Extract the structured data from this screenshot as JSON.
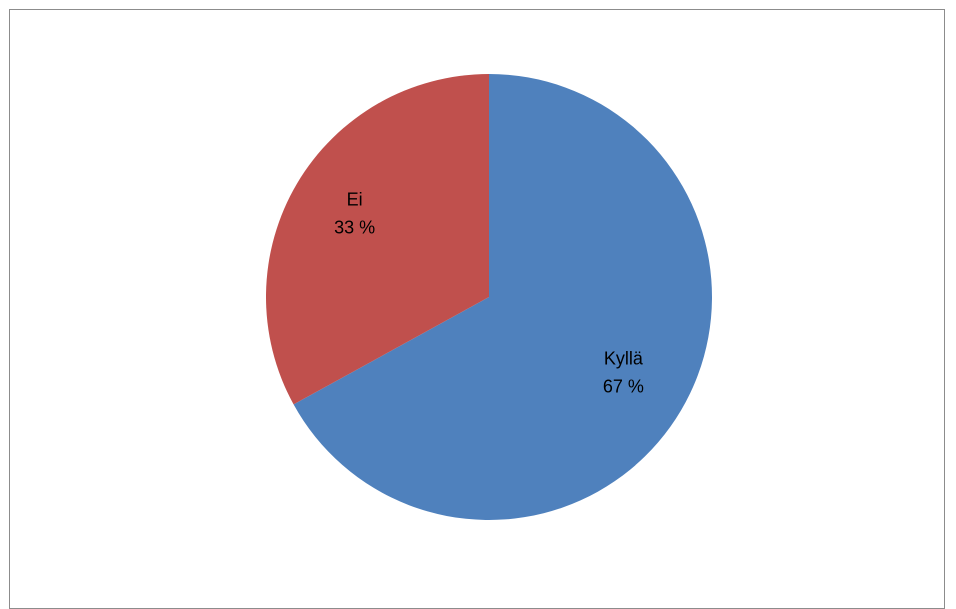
{
  "chart_data": {
    "type": "pie",
    "title": "",
    "slices": [
      {
        "label": "Kyllä",
        "value": 67,
        "value_label": "67 %",
        "color": "#4F81BD"
      },
      {
        "label": "Ei",
        "value": 33,
        "value_label": "33 %",
        "color": "#C0504D"
      }
    ],
    "start": "top",
    "direction": "clockwise",
    "legend": "none"
  }
}
